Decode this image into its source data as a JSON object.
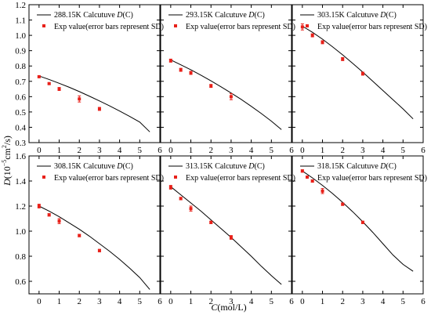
{
  "figure": {
    "y_axis_label": {
      "prefix": "D",
      "mid": "(10",
      "sup1": "−5",
      "mid2": "cm",
      "sup2": "2",
      "suffix": "/s)"
    },
    "x_axis_label": {
      "prefix": "C",
      "suffix": "(mol/L)"
    },
    "legend_exp_label": "Exp value(error bars represent SD)"
  },
  "chart_data": [
    {
      "type": "line",
      "legend_calc_label": "288.15K Calcutuve D(C)",
      "xlim": [
        -0.5,
        6
      ],
      "ylim": [
        0.3,
        1.2
      ],
      "x_ticks": [
        0,
        1,
        2,
        3,
        4,
        5,
        6
      ],
      "y_ticks": [
        0.3,
        0.4,
        0.5,
        0.6,
        0.7,
        0.8,
        0.9,
        1.0,
        1.1,
        1.2
      ],
      "calc_x": [
        0,
        0.5,
        1,
        1.5,
        2,
        2.5,
        3,
        3.5,
        4,
        4.5,
        5,
        5.5
      ],
      "calc_y": [
        0.735,
        0.712,
        0.687,
        0.661,
        0.633,
        0.603,
        0.572,
        0.54,
        0.506,
        0.471,
        0.434,
        0.37
      ],
      "exp": [
        {
          "x": 0,
          "y": 0.73,
          "err": 0.005
        },
        {
          "x": 0.5,
          "y": 0.685,
          "err": 0.005
        },
        {
          "x": 1,
          "y": 0.65,
          "err": 0.01
        },
        {
          "x": 2,
          "y": 0.585,
          "err": 0.02
        },
        {
          "x": 3,
          "y": 0.52,
          "err": 0.01
        }
      ]
    },
    {
      "type": "line",
      "legend_calc_label": "293.15K Calcutuve D(C)",
      "xlim": [
        -0.5,
        6
      ],
      "ylim": [
        0.3,
        1.2
      ],
      "x_ticks": [
        0,
        1,
        2,
        3,
        4,
        5,
        6
      ],
      "y_ticks": [
        0.3,
        0.4,
        0.5,
        0.6,
        0.7,
        0.8,
        0.9,
        1.0,
        1.1,
        1.2
      ],
      "calc_x": [
        0,
        0.5,
        1,
        1.5,
        2,
        2.5,
        3,
        3.5,
        4,
        4.5,
        5,
        5.5
      ],
      "calc_y": [
        0.84,
        0.808,
        0.775,
        0.74,
        0.703,
        0.664,
        0.624,
        0.582,
        0.537,
        0.49,
        0.44,
        0.385
      ],
      "exp": [
        {
          "x": 0,
          "y": 0.835,
          "err": 0.01
        },
        {
          "x": 0.5,
          "y": 0.775,
          "err": 0.01
        },
        {
          "x": 1,
          "y": 0.755,
          "err": 0.01
        },
        {
          "x": 2,
          "y": 0.67,
          "err": 0.01
        },
        {
          "x": 3,
          "y": 0.6,
          "err": 0.02
        }
      ]
    },
    {
      "type": "line",
      "legend_calc_label": "303.15K Calcutuve D(C)",
      "xlim": [
        -0.5,
        6
      ],
      "ylim": [
        0.3,
        1.2
      ],
      "x_ticks": [
        0,
        1,
        2,
        3,
        4,
        5,
        6
      ],
      "y_ticks": [
        0.3,
        0.4,
        0.5,
        0.6,
        0.7,
        0.8,
        0.9,
        1.0,
        1.1,
        1.2
      ],
      "calc_x": [
        0,
        0.5,
        1,
        1.5,
        2,
        2.5,
        3,
        3.5,
        4,
        4.5,
        5,
        5.5
      ],
      "calc_y": [
        1.06,
        1.02,
        0.975,
        0.925,
        0.873,
        0.817,
        0.76,
        0.7,
        0.64,
        0.58,
        0.52,
        0.455
      ],
      "exp": [
        {
          "x": 0,
          "y": 1.055,
          "err": 0.02
        },
        {
          "x": 0.5,
          "y": 1.0,
          "err": 0.01
        },
        {
          "x": 1,
          "y": 0.955,
          "err": 0.01
        },
        {
          "x": 2,
          "y": 0.845,
          "err": 0.01
        },
        {
          "x": 3,
          "y": 0.75,
          "err": 0.01
        }
      ]
    },
    {
      "type": "line",
      "legend_calc_label": "308.15K Calcutuve D(C)",
      "xlim": [
        -0.5,
        6
      ],
      "ylim": [
        0.5,
        1.6
      ],
      "x_ticks": [
        0,
        1,
        2,
        3,
        4,
        5,
        6
      ],
      "y_ticks": [
        0.6,
        0.8,
        1.0,
        1.2,
        1.4,
        1.6
      ],
      "calc_x": [
        0,
        0.5,
        1,
        1.5,
        2,
        2.5,
        3,
        3.5,
        4,
        4.5,
        5,
        5.5
      ],
      "calc_y": [
        1.2,
        1.16,
        1.115,
        1.065,
        1.015,
        0.96,
        0.9,
        0.84,
        0.775,
        0.705,
        0.63,
        0.535
      ],
      "exp": [
        {
          "x": 0,
          "y": 1.2,
          "err": 0.015
        },
        {
          "x": 0.5,
          "y": 1.13,
          "err": 0.01
        },
        {
          "x": 1,
          "y": 1.08,
          "err": 0.02
        },
        {
          "x": 2,
          "y": 0.965,
          "err": 0.01
        },
        {
          "x": 3,
          "y": 0.845,
          "err": 0.01
        }
      ]
    },
    {
      "type": "line",
      "legend_calc_label": "313.15K Calcutuve D(C)",
      "xlim": [
        -0.5,
        6
      ],
      "ylim": [
        0.5,
        1.6
      ],
      "x_ticks": [
        0,
        1,
        2,
        3,
        4,
        5,
        6
      ],
      "y_ticks": [
        0.6,
        0.8,
        1.0,
        1.2,
        1.4,
        1.6
      ],
      "calc_x": [
        0,
        0.5,
        1,
        1.5,
        2,
        2.5,
        3,
        3.5,
        4,
        4.5,
        5,
        5.5
      ],
      "calc_y": [
        1.355,
        1.29,
        1.225,
        1.16,
        1.09,
        1.02,
        0.95,
        0.875,
        0.8,
        0.72,
        0.645,
        0.575
      ],
      "exp": [
        {
          "x": 0,
          "y": 1.35,
          "err": 0.015
        },
        {
          "x": 0.5,
          "y": 1.26,
          "err": 0.01
        },
        {
          "x": 1,
          "y": 1.18,
          "err": 0.02
        },
        {
          "x": 2,
          "y": 1.07,
          "err": 0.01
        },
        {
          "x": 3,
          "y": 0.95,
          "err": 0.015
        }
      ]
    },
    {
      "type": "line",
      "legend_calc_label": "318.15K Calcutuve D(C)",
      "xlim": [
        -0.5,
        6
      ],
      "ylim": [
        0.5,
        1.6
      ],
      "x_ticks": [
        0,
        1,
        2,
        3,
        4,
        5,
        6
      ],
      "y_ticks": [
        0.6,
        0.8,
        1.0,
        1.2,
        1.4,
        1.6
      ],
      "calc_x": [
        0,
        0.5,
        1,
        1.5,
        2,
        2.5,
        3,
        3.5,
        4,
        4.5,
        5,
        5.5
      ],
      "calc_y": [
        1.48,
        1.425,
        1.365,
        1.3,
        1.23,
        1.155,
        1.075,
        0.99,
        0.9,
        0.81,
        0.735,
        0.68
      ],
      "exp": [
        {
          "x": 0,
          "y": 1.48,
          "err": 0.01
        },
        {
          "x": 0.5,
          "y": 1.4,
          "err": 0.01
        },
        {
          "x": 1,
          "y": 1.32,
          "err": 0.02
        },
        {
          "x": 2,
          "y": 1.215,
          "err": 0.01
        },
        {
          "x": 3,
          "y": 1.07,
          "err": 0.01
        }
      ]
    }
  ]
}
